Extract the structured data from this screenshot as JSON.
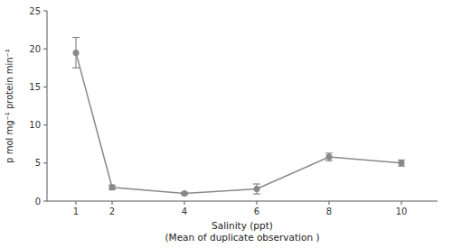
{
  "chart_data": {
    "type": "line",
    "x": [
      1,
      2,
      4,
      6,
      8,
      10
    ],
    "values": [
      19.5,
      1.8,
      1.0,
      1.6,
      5.8,
      5.0
    ],
    "errors": [
      2.0,
      0.3,
      0.15,
      0.65,
      0.5,
      0.4
    ],
    "color": "#888888",
    "marker": "circle",
    "xlabel": "Salinity (ppt)\n(Mean of duplicate observation )",
    "ylabel": "p mol mg⁻¹ protein min⁻¹",
    "xlim": [
      0.2,
      11
    ],
    "ylim": [
      0,
      25
    ],
    "xticks": [
      1,
      2,
      4,
      6,
      8,
      10
    ],
    "yticks": [
      0,
      5,
      10,
      15,
      20,
      25
    ]
  }
}
